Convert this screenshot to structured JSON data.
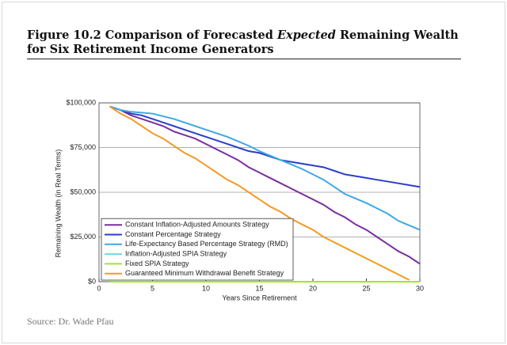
{
  "chart_data": {
    "type": "line",
    "title_parts": [
      "Figure 10.2 Comparison of Forecasted",
      "Expected",
      "Remaining Wealth",
      "for Six Retirement Income Generators"
    ],
    "source": "Source: Dr. Wade Pfau",
    "x_label": "Years Since Retirement",
    "y_label": "Remaining Wealth (in Real Terms)",
    "x": [
      1,
      2,
      3,
      4,
      5,
      6,
      7,
      8,
      9,
      10,
      11,
      12,
      13,
      14,
      15,
      16,
      17,
      18,
      19,
      20,
      21,
      22,
      23,
      24,
      25,
      26,
      27,
      28,
      29,
      30
    ],
    "xlim": [
      0,
      30
    ],
    "xticks": [
      0,
      5,
      10,
      15,
      20,
      25,
      30
    ],
    "ylim": [
      0,
      100000
    ],
    "yticks": [
      {
        "value": 0,
        "label": "$0"
      },
      {
        "value": 25000,
        "label": "$25,000"
      },
      {
        "value": 50000,
        "label": "$50,000"
      },
      {
        "value": 75000,
        "label": "$75,000"
      },
      {
        "value": 100000,
        "label": "$100,000"
      }
    ],
    "grid": true,
    "legend": "lower left",
    "series": [
      {
        "name": "Constant Inflation-Adjusted Amounts Strategy",
        "color": "#7b2d9e",
        "values": [
          98000,
          96000,
          93000,
          91000,
          89000,
          87000,
          84000,
          82000,
          80000,
          77000,
          74000,
          71000,
          68000,
          64000,
          61000,
          58000,
          55000,
          52000,
          49000,
          46000,
          43000,
          39000,
          36000,
          32000,
          29000,
          25000,
          21000,
          17000,
          14000,
          10000
        ]
      },
      {
        "name": "Constant Percentage Strategy",
        "color": "#2c3ec9",
        "values": [
          98000,
          96000,
          94000,
          93000,
          91000,
          89000,
          87000,
          85000,
          83000,
          81000,
          79000,
          77000,
          75000,
          73000,
          72000,
          70000,
          68000,
          67000,
          66000,
          65000,
          64000,
          62000,
          60000,
          59000,
          58000,
          57000,
          56000,
          55000,
          54000,
          53000
        ]
      },
      {
        "name": "Life-Expectancy Based Percentage Strategy (RMD)",
        "color": "#3fa7e6",
        "values": [
          98000,
          96000,
          95000,
          94500,
          94000,
          92500,
          91000,
          89000,
          87000,
          85000,
          83000,
          81000,
          78500,
          76000,
          73000,
          70500,
          68000,
          65500,
          63000,
          60000,
          57000,
          53000,
          49000,
          46500,
          44000,
          41000,
          38000,
          34000,
          31500,
          29000
        ]
      },
      {
        "name": "Inflation-Adjusted SPIA Strategy",
        "color": "#6fd6f0",
        "values": [
          0,
          0,
          0,
          0,
          0,
          0,
          0,
          0,
          0,
          0,
          0,
          0,
          0,
          0,
          0,
          0,
          0,
          0,
          0,
          0,
          0,
          0,
          0,
          0,
          0,
          0,
          0,
          0,
          0,
          0
        ]
      },
      {
        "name": "Fixed SPIA Strategy",
        "color": "#a6e22e",
        "values": [
          0,
          0,
          0,
          0,
          0,
          0,
          0,
          0,
          0,
          0,
          0,
          0,
          0,
          0,
          0,
          0,
          0,
          0,
          0,
          0,
          0,
          0,
          0,
          0,
          0,
          0,
          0,
          0,
          0,
          0
        ]
      },
      {
        "name": "Guaranteed Minimum Withdrawal Benefit Strategy",
        "color": "#f39a27",
        "values": [
          98000,
          94000,
          91000,
          87000,
          83000,
          80000,
          76000,
          72000,
          69000,
          65000,
          61000,
          57000,
          54000,
          50000,
          46000,
          42000,
          39000,
          35000,
          32000,
          29000,
          25000,
          22000,
          19000,
          16000,
          13000,
          10000,
          7000,
          4000,
          1000,
          null
        ]
      }
    ]
  }
}
